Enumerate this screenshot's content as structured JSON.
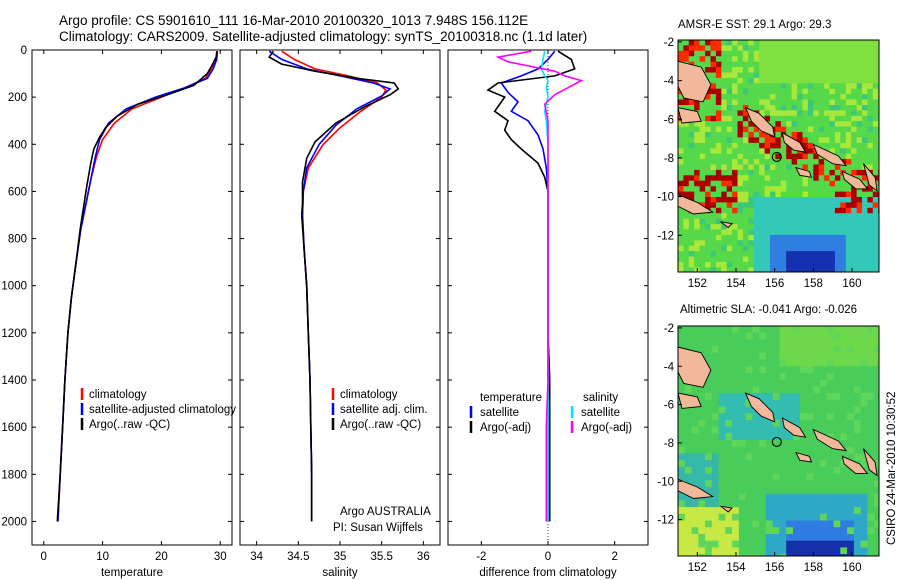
{
  "header": {
    "line1": "Argo profile: CS 5901610_111 16-Mar-2010 20100320_1013 7.948S 156.112E",
    "line2": "Climatology: CARS2009. Satellite-adjusted climatology: synTS_20100318.nc (1.1d later)"
  },
  "side_label": "CSIRO 24-Mar-2010 10:30:52",
  "chart_data": [
    {
      "type": "line",
      "xlabel": "temperature",
      "xlim": [
        -2,
        32
      ],
      "ylim": [
        2100,
        0
      ],
      "y_inverted": true,
      "xticks": [
        0,
        10,
        20,
        30
      ],
      "yticks": [
        0,
        200,
        400,
        600,
        800,
        1000,
        1200,
        1400,
        1600,
        1800,
        2000
      ],
      "legend": {
        "placement": "lower-left",
        "entries": [
          "climatology",
          "satellite-adjusted climatology",
          "Argo(..raw -QC)"
        ]
      },
      "series": [
        {
          "name": "climatology",
          "color": "#ff0000",
          "points": [
            [
              29.4,
              5
            ],
            [
              29.3,
              40
            ],
            [
              28.5,
              80
            ],
            [
              27.5,
              120
            ],
            [
              24,
              160
            ],
            [
              20,
              200
            ],
            [
              15,
              250
            ],
            [
              12,
              310
            ],
            [
              10,
              380
            ],
            [
              9,
              450
            ],
            [
              8,
              550
            ],
            [
              7.2,
              650
            ],
            [
              6.3,
              760
            ],
            [
              5.5,
              900
            ],
            [
              4.7,
              1050
            ],
            [
              4.1,
              1200
            ],
            [
              3.6,
              1400
            ],
            [
              3.2,
              1600
            ],
            [
              2.8,
              1800
            ],
            [
              2.4,
              2000
            ]
          ]
        },
        {
          "name": "satellite-adjusted climatology",
          "color": "#0000ff",
          "points": [
            [
              29.5,
              5
            ],
            [
              29.4,
              40
            ],
            [
              28.8,
              80
            ],
            [
              27.8,
              120
            ],
            [
              24,
              160
            ],
            [
              19,
              200
            ],
            [
              14,
              250
            ],
            [
              11,
              310
            ],
            [
              9.5,
              380
            ],
            [
              8.8,
              450
            ],
            [
              8,
              550
            ],
            [
              7.2,
              650
            ],
            [
              6.3,
              760
            ],
            [
              5.5,
              900
            ],
            [
              4.7,
              1050
            ],
            [
              4.1,
              1200
            ],
            [
              3.6,
              1400
            ],
            [
              3.2,
              1600
            ],
            [
              2.8,
              1800
            ],
            [
              2.4,
              2000
            ]
          ]
        },
        {
          "name": "Argo(..raw -QC)",
          "color": "#000000",
          "points": [
            [
              29.5,
              5
            ],
            [
              29.3,
              30
            ],
            [
              28.7,
              60
            ],
            [
              27.8,
              100
            ],
            [
              25.5,
              150
            ],
            [
              21,
              190
            ],
            [
              16,
              230
            ],
            [
              12.5,
              280
            ],
            [
              10.5,
              330
            ],
            [
              9.5,
              370
            ],
            [
              8.5,
              420
            ],
            [
              8,
              480
            ],
            [
              7.3,
              580
            ],
            [
              6.8,
              660
            ],
            [
              6.2,
              760
            ],
            [
              5.5,
              900
            ],
            [
              4.7,
              1050
            ],
            [
              4.1,
              1200
            ],
            [
              3.6,
              1400
            ],
            [
              3.2,
              1600
            ],
            [
              2.8,
              1800
            ],
            [
              2.3,
              2000
            ]
          ]
        }
      ]
    },
    {
      "type": "line",
      "xlabel": "salinity",
      "xlim": [
        33.8,
        36.2
      ],
      "ylim": [
        2100,
        0
      ],
      "y_inverted": true,
      "xticks": [
        34,
        34.5,
        35,
        35.5,
        36
      ],
      "xticklabels": [
        "34",
        "34.5",
        "35",
        "35.5",
        "36"
      ],
      "legend": {
        "placement": "lower-right",
        "entries": [
          "climatology",
          "satellite adj. clim.",
          "Argo(..raw -QC)"
        ]
      },
      "annotation": [
        "Argo AUSTRALIA",
        "PI: Susan Wijffels"
      ],
      "series": [
        {
          "name": "climatology",
          "color": "#ff0000",
          "points": [
            [
              34.3,
              5
            ],
            [
              34.45,
              40
            ],
            [
              34.7,
              80
            ],
            [
              35.1,
              110
            ],
            [
              35.45,
              140
            ],
            [
              35.55,
              170
            ],
            [
              35.5,
              200
            ],
            [
              35.25,
              260
            ],
            [
              35.0,
              330
            ],
            [
              34.8,
              400
            ],
            [
              34.62,
              500
            ],
            [
              34.56,
              600
            ],
            [
              34.55,
              700
            ],
            [
              34.57,
              850
            ],
            [
              34.6,
              1000
            ],
            [
              34.62,
              1200
            ],
            [
              34.64,
              1400
            ],
            [
              34.65,
              1600
            ],
            [
              34.66,
              1800
            ],
            [
              34.66,
              2000
            ]
          ]
        },
        {
          "name": "satellite adj. clim.",
          "color": "#0000ff",
          "points": [
            [
              34.15,
              5
            ],
            [
              34.3,
              40
            ],
            [
              34.6,
              80
            ],
            [
              35.0,
              110
            ],
            [
              35.4,
              140
            ],
            [
              35.6,
              165
            ],
            [
              35.5,
              195
            ],
            [
              35.2,
              250
            ],
            [
              34.95,
              320
            ],
            [
              34.75,
              400
            ],
            [
              34.6,
              500
            ],
            [
              34.56,
              600
            ],
            [
              34.55,
              700
            ],
            [
              34.57,
              850
            ],
            [
              34.6,
              1000
            ],
            [
              34.62,
              1200
            ],
            [
              34.64,
              1400
            ],
            [
              34.65,
              1600
            ],
            [
              34.66,
              1800
            ],
            [
              34.66,
              2000
            ]
          ]
        },
        {
          "name": "Argo(..raw -QC)",
          "color": "#000000",
          "points": [
            [
              34.2,
              5
            ],
            [
              34.15,
              30
            ],
            [
              34.3,
              60
            ],
            [
              34.7,
              90
            ],
            [
              35.2,
              120
            ],
            [
              35.65,
              140
            ],
            [
              35.7,
              165
            ],
            [
              35.6,
              190
            ],
            [
              35.3,
              240
            ],
            [
              34.95,
              310
            ],
            [
              34.7,
              390
            ],
            [
              34.6,
              460
            ],
            [
              34.55,
              560
            ],
            [
              34.55,
              650
            ],
            [
              34.54,
              700
            ],
            [
              34.57,
              850
            ],
            [
              34.6,
              1000
            ],
            [
              34.62,
              1200
            ],
            [
              34.64,
              1400
            ],
            [
              34.65,
              1600
            ],
            [
              34.66,
              1800
            ],
            [
              34.66,
              2000
            ]
          ]
        }
      ]
    },
    {
      "type": "line",
      "xlabel": "difference from climatology",
      "xlim": [
        -3,
        3
      ],
      "ylim": [
        2100,
        0
      ],
      "y_inverted": true,
      "xticks": [
        -2,
        0,
        2
      ],
      "legend": {
        "placement": "lower",
        "groups": [
          {
            "title": "temperature",
            "entries": [
              "satellite",
              "Argo(-adj)"
            ]
          },
          {
            "title": "salinity",
            "entries": [
              "satellite",
              "Argo(-adj)"
            ]
          }
        ]
      },
      "series": [
        {
          "name": "temperature satellite",
          "color": "#0000ff",
          "points": [
            [
              0.2,
              5
            ],
            [
              0,
              40
            ],
            [
              -0.3,
              80
            ],
            [
              -0.8,
              110
            ],
            [
              -1.4,
              140
            ],
            [
              -1.2,
              180
            ],
            [
              -0.9,
              220
            ],
            [
              -1.1,
              260
            ],
            [
              -0.6,
              300
            ],
            [
              -0.3,
              360
            ],
            [
              -0.15,
              420
            ],
            [
              -0.05,
              500
            ],
            [
              0,
              600
            ],
            [
              0,
              800
            ],
            [
              0,
              1200
            ],
            [
              0,
              1600
            ],
            [
              0,
              2000
            ]
          ]
        },
        {
          "name": "temperature Argo(-adj)",
          "color": "#000000",
          "points": [
            [
              0.3,
              5
            ],
            [
              0.7,
              40
            ],
            [
              0.8,
              80
            ],
            [
              0.2,
              110
            ],
            [
              -1.5,
              140
            ],
            [
              -1.8,
              170
            ],
            [
              -1.3,
              200
            ],
            [
              -1.6,
              260
            ],
            [
              -1.2,
              300
            ],
            [
              -1.3,
              340
            ],
            [
              -1.1,
              380
            ],
            [
              -0.8,
              420
            ],
            [
              -0.3,
              480
            ],
            [
              -0.1,
              540
            ],
            [
              0,
              600
            ],
            [
              0,
              700
            ],
            [
              0,
              800
            ],
            [
              0,
              1000
            ],
            [
              0,
              1200
            ],
            [
              0.05,
              1400
            ],
            [
              0.05,
              1600
            ],
            [
              0.05,
              1800
            ],
            [
              0.05,
              2000
            ]
          ]
        },
        {
          "name": "salinity satellite",
          "color": "#00e5ff",
          "points": [
            [
              -0.1,
              5
            ],
            [
              -0.15,
              40
            ],
            [
              -0.2,
              80
            ],
            [
              -0.1,
              110
            ],
            [
              0.0,
              130
            ],
            [
              -0.05,
              160
            ],
            [
              0.0,
              200
            ],
            [
              -0.1,
              260
            ],
            [
              -0.05,
              300
            ],
            [
              0,
              400
            ],
            [
              0,
              600
            ],
            [
              0,
              800
            ],
            [
              0,
              1200
            ],
            [
              0,
              1600
            ],
            [
              0,
              2000
            ]
          ]
        },
        {
          "name": "salinity Argo(-adj)",
          "color": "#ff00ff",
          "points": [
            [
              -0.5,
              5
            ],
            [
              -1.5,
              30
            ],
            [
              -1.2,
              50
            ],
            [
              -0.5,
              70
            ],
            [
              0.2,
              90
            ],
            [
              0.5,
              110
            ],
            [
              1.0,
              130
            ],
            [
              0.6,
              160
            ],
            [
              0.2,
              190
            ],
            [
              -0.1,
              230
            ],
            [
              0,
              300
            ],
            [
              0,
              400
            ],
            [
              0,
              600
            ],
            [
              0,
              800
            ],
            [
              0,
              1200
            ],
            [
              0,
              1400
            ],
            [
              -0.05,
              1600
            ],
            [
              -0.05,
              1800
            ],
            [
              -0.05,
              2000
            ]
          ]
        }
      ]
    }
  ],
  "maps": [
    {
      "title": "AMSR-E SST: 29.1 Argo: 29.3",
      "xticks": [
        152,
        154,
        156,
        158,
        160
      ],
      "yticks": [
        -2,
        -4,
        -6,
        -8,
        -10,
        -12
      ],
      "float_position": [
        156.112,
        -7.948
      ]
    },
    {
      "title": "Altimetric SLA: -0.041 Argo: -0.026",
      "xticks": [
        152,
        154,
        156,
        158,
        160
      ],
      "yticks": [
        -2,
        -4,
        -6,
        -8,
        -10,
        -12
      ],
      "float_position": [
        156.112,
        -7.948
      ]
    }
  ]
}
